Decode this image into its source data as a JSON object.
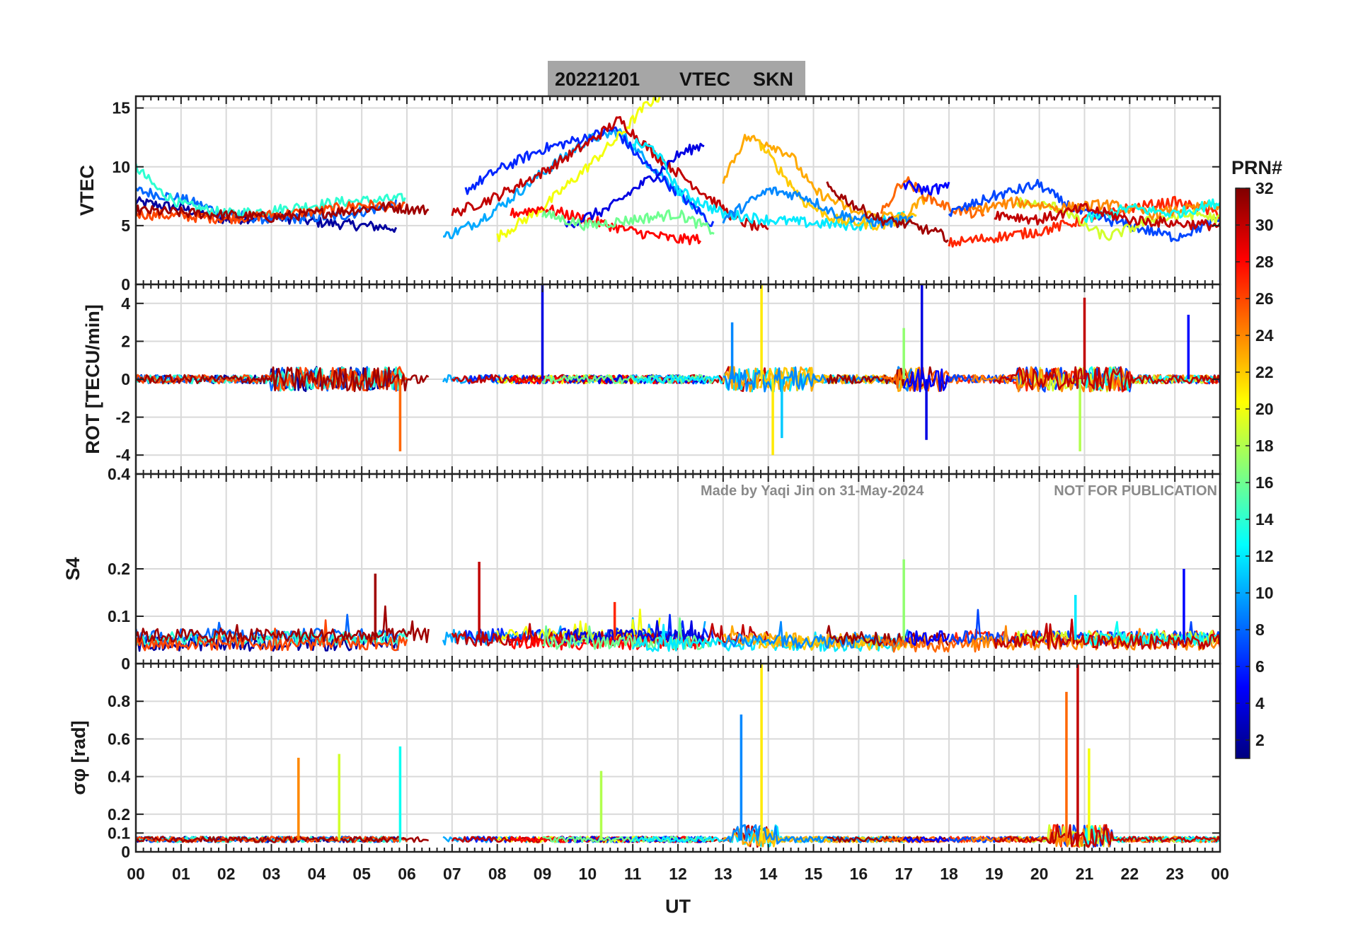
{
  "chart_data": {
    "type": "line",
    "title": {
      "date": "20221201",
      "quantity": "VTEC",
      "station": "SKN"
    },
    "watermark": {
      "made_by": "Made by Yaqi Jin on 31-May-2024",
      "notice": "NOT FOR PUBLICATION"
    },
    "xlabel": "UT",
    "x_tick_labels": [
      "00",
      "01",
      "02",
      "03",
      "04",
      "05",
      "06",
      "07",
      "08",
      "09",
      "10",
      "11",
      "12",
      "13",
      "14",
      "15",
      "16",
      "17",
      "18",
      "19",
      "20",
      "21",
      "22",
      "23",
      "00"
    ],
    "xlim": [
      0,
      24
    ],
    "grid": true,
    "colorbar": {
      "label": "PRN#",
      "range": [
        1,
        32
      ],
      "colormap": "jet",
      "tick_labels": [
        "2",
        "4",
        "6",
        "8",
        "10",
        "12",
        "14",
        "16",
        "18",
        "20",
        "22",
        "24",
        "26",
        "28",
        "30",
        "32"
      ]
    },
    "panels": [
      {
        "id": "vtec",
        "ylabel": "VTEC",
        "ylim": [
          0,
          16
        ],
        "yticks": [
          0,
          5,
          10,
          15
        ],
        "ytick_labels": [
          "0",
          "5",
          "10",
          "15"
        ]
      },
      {
        "id": "rot",
        "ylabel": "ROT [TECU/min]",
        "ylim": [
          -5,
          5
        ],
        "yticks": [
          -4,
          -2,
          0,
          2,
          4
        ],
        "ytick_labels": [
          "-4",
          "-2",
          "0",
          "2",
          "4"
        ]
      },
      {
        "id": "s4",
        "ylabel": "S4",
        "ylim": [
          0,
          0.4
        ],
        "yticks": [
          0,
          0.1,
          0.2,
          0.4
        ],
        "ytick_labels": [
          "0",
          "0.1",
          "0.2",
          "0.4"
        ]
      },
      {
        "id": "sigphi",
        "ylabel": "σφ [rad]",
        "ylim": [
          0,
          1
        ],
        "yticks": [
          0,
          0.1,
          0.2,
          0.4,
          0.6,
          0.8
        ],
        "ytick_labels": [
          "0",
          "0.1",
          "0.2",
          "0.4",
          "0.6",
          "0.8"
        ]
      }
    ],
    "series": [
      {
        "prn": 2,
        "vtec": [
          [
            0.0,
            7.0
          ],
          [
            1.0,
            6.5
          ],
          [
            2.0,
            5.5
          ],
          [
            3.0,
            5.8
          ],
          [
            4.0,
            5.3
          ],
          [
            5.0,
            5.0
          ],
          [
            5.8,
            4.8
          ]
        ]
      },
      {
        "prn": 8,
        "vtec": [
          [
            0.0,
            8.0
          ],
          [
            1.0,
            7.3
          ],
          [
            2.0,
            6.0
          ],
          [
            3.0,
            5.5
          ],
          [
            4.5,
            5.8
          ],
          [
            5.8,
            6.8
          ]
        ]
      },
      {
        "prn": 14,
        "vtec": [
          [
            0.0,
            10.0
          ],
          [
            0.5,
            8.0
          ],
          [
            1.0,
            6.8
          ],
          [
            2.0,
            6.0
          ],
          [
            3.0,
            6.3
          ],
          [
            4.5,
            7.0
          ],
          [
            6.0,
            7.3
          ]
        ]
      },
      {
        "prn": 26,
        "vtec": [
          [
            0.0,
            6.0
          ],
          [
            1.0,
            5.8
          ],
          [
            2.0,
            5.6
          ],
          [
            3.0,
            5.9
          ],
          [
            4.0,
            6.2
          ],
          [
            5.0,
            6.8
          ],
          [
            6.0,
            6.5
          ]
        ]
      },
      {
        "prn": 31,
        "vtec": [
          [
            0.0,
            6.3
          ],
          [
            1.5,
            6.0
          ],
          [
            3.0,
            5.7
          ],
          [
            4.5,
            6.2
          ],
          [
            5.5,
            6.6
          ],
          [
            6.5,
            6.3
          ]
        ]
      },
      {
        "prn": 10,
        "vtec": [
          [
            6.8,
            4.0
          ],
          [
            7.5,
            5.2
          ],
          [
            8.2,
            7.0
          ],
          [
            9.0,
            9.5
          ],
          [
            10.0,
            12.3
          ],
          [
            10.7,
            13.0
          ],
          [
            11.3,
            10.5
          ],
          [
            12.0,
            8.0
          ],
          [
            12.6,
            5.5
          ]
        ]
      },
      {
        "prn": 6,
        "vtec": [
          [
            7.3,
            8.0
          ],
          [
            8.0,
            9.7
          ],
          [
            9.0,
            11.5
          ],
          [
            10.0,
            12.5
          ],
          [
            10.6,
            13.2
          ],
          [
            11.2,
            10.5
          ],
          [
            12.0,
            7.8
          ],
          [
            12.8,
            5.0
          ]
        ]
      },
      {
        "prn": 20,
        "vtec": [
          [
            8.0,
            4.0
          ],
          [
            9.0,
            6.5
          ],
          [
            10.0,
            10.0
          ],
          [
            10.7,
            12.6
          ],
          [
            11.3,
            15.3
          ],
          [
            11.6,
            16.0
          ]
        ]
      },
      {
        "prn": 30,
        "vtec": [
          [
            7.0,
            6.0
          ],
          [
            8.0,
            7.5
          ],
          [
            9.0,
            9.5
          ],
          [
            10.0,
            12.0
          ],
          [
            10.7,
            14.0
          ],
          [
            11.5,
            11.0
          ],
          [
            12.5,
            8.0
          ],
          [
            13.3,
            5.5
          ],
          [
            14.0,
            4.5
          ]
        ]
      },
      {
        "prn": 28,
        "vtec": [
          [
            8.3,
            6.0
          ],
          [
            9.0,
            6.5
          ],
          [
            10.0,
            5.5
          ],
          [
            11.0,
            4.5
          ],
          [
            12.0,
            3.8
          ],
          [
            12.5,
            3.9
          ]
        ]
      },
      {
        "prn": 4,
        "vtec": [
          [
            9.5,
            5.0
          ],
          [
            10.5,
            6.5
          ],
          [
            11.0,
            8.0
          ],
          [
            11.5,
            9.3
          ],
          [
            12.0,
            11.0
          ],
          [
            12.6,
            12.0
          ]
        ]
      },
      {
        "prn": 16,
        "vtec": [
          [
            9.0,
            6.0
          ],
          [
            10.0,
            5.0
          ],
          [
            11.0,
            5.5
          ],
          [
            12.0,
            6.0
          ],
          [
            12.8,
            4.5
          ]
        ]
      },
      {
        "prn": 12,
        "vtec": [
          [
            11.0,
            12.0
          ],
          [
            11.5,
            11.5
          ],
          [
            12.0,
            8.0
          ],
          [
            13.0,
            6.0
          ],
          [
            14.0,
            5.5
          ],
          [
            15.0,
            5.2
          ],
          [
            16.0,
            5.0
          ],
          [
            17.0,
            5.8
          ]
        ]
      },
      {
        "prn": 23,
        "vtec": [
          [
            13.0,
            9.0
          ],
          [
            13.5,
            12.5
          ],
          [
            14.0,
            12.0
          ],
          [
            14.5,
            11.0
          ],
          [
            15.0,
            8.0
          ],
          [
            16.0,
            6.0
          ],
          [
            17.0,
            5.7
          ],
          [
            17.5,
            7.5
          ]
        ]
      },
      {
        "prn": 22,
        "vtec": [
          [
            13.8,
            12.0
          ],
          [
            14.2,
            10.0
          ],
          [
            14.8,
            7.0
          ],
          [
            15.5,
            5.5
          ],
          [
            16.5,
            5.0
          ],
          [
            17.3,
            6.0
          ]
        ]
      },
      {
        "prn": 9,
        "vtec": [
          [
            13.0,
            5.5
          ],
          [
            14.0,
            8.0
          ],
          [
            14.8,
            7.5
          ],
          [
            15.5,
            6.0
          ],
          [
            16.5,
            5.2
          ],
          [
            17.2,
            5.5
          ]
        ]
      },
      {
        "prn": 31,
        "vtec": [
          [
            15.3,
            8.3
          ],
          [
            16.0,
            6.5
          ],
          [
            16.5,
            5.5
          ],
          [
            17.2,
            5.0
          ],
          [
            18.0,
            4.0
          ]
        ]
      },
      {
        "prn": 25,
        "vtec": [
          [
            16.5,
            6.0
          ],
          [
            17.0,
            9.0
          ],
          [
            17.5,
            7.5
          ],
          [
            18.0,
            6.5
          ],
          [
            18.8,
            5.8
          ]
        ]
      },
      {
        "prn": 5,
        "vtec": [
          [
            17.0,
            8.5
          ],
          [
            17.5,
            8.0
          ],
          [
            18.0,
            8.3
          ]
        ]
      },
      {
        "prn": 27,
        "vtec": [
          [
            18.0,
            3.5
          ],
          [
            19.0,
            4.0
          ],
          [
            20.0,
            4.5
          ],
          [
            21.0,
            5.5
          ],
          [
            22.0,
            6.5
          ],
          [
            23.0,
            7.0
          ],
          [
            24.0,
            6.0
          ]
        ]
      },
      {
        "prn": 7,
        "vtec": [
          [
            18.0,
            6.0
          ],
          [
            19.0,
            7.5
          ],
          [
            20.0,
            8.5
          ],
          [
            20.5,
            7.0
          ],
          [
            21.0,
            6.0
          ],
          [
            22.0,
            5.0
          ],
          [
            23.0,
            4.0
          ],
          [
            24.0,
            5.5
          ]
        ]
      },
      {
        "prn": 19,
        "vtec": [
          [
            19.5,
            7.0
          ],
          [
            20.5,
            6.5
          ],
          [
            21.0,
            5.0
          ],
          [
            21.5,
            4.0
          ],
          [
            22.5,
            5.5
          ],
          [
            23.5,
            6.0
          ],
          [
            24.0,
            5.5
          ]
        ]
      },
      {
        "prn": 24,
        "vtec": [
          [
            18.5,
            6.3
          ],
          [
            19.5,
            7.0
          ],
          [
            20.5,
            6.5
          ],
          [
            21.5,
            6.8
          ],
          [
            22.5,
            6.0
          ],
          [
            23.5,
            6.5
          ],
          [
            24.0,
            6.8
          ]
        ]
      },
      {
        "prn": 13,
        "vtec": [
          [
            21.0,
            5.5
          ],
          [
            22.0,
            6.5
          ],
          [
            23.0,
            6.0
          ],
          [
            24.0,
            7.0
          ]
        ]
      },
      {
        "prn": 30,
        "vtec": [
          [
            19.0,
            6.0
          ],
          [
            20.0,
            5.5
          ],
          [
            21.0,
            6.5
          ],
          [
            22.0,
            5.5
          ],
          [
            23.0,
            5.2
          ],
          [
            24.0,
            5.0
          ]
        ]
      }
    ],
    "spikes": {
      "rot": [
        {
          "t": 9.0,
          "v": 5.0,
          "prn": 4
        },
        {
          "t": 17.4,
          "v": 5.0,
          "prn": 4
        },
        {
          "t": 13.85,
          "v": 5.0,
          "prn": 21
        },
        {
          "t": 21.0,
          "v": 4.3,
          "prn": 30
        },
        {
          "t": 14.1,
          "v": -4.0,
          "prn": 21
        },
        {
          "t": 5.85,
          "v": -3.8,
          "prn": 25
        },
        {
          "t": 20.9,
          "v": -3.8,
          "prn": 18
        },
        {
          "t": 17.5,
          "v": -3.2,
          "prn": 4
        },
        {
          "t": 14.3,
          "v": -3.1,
          "prn": 11
        },
        {
          "t": 23.3,
          "v": 3.4,
          "prn": 5
        },
        {
          "t": 13.2,
          "v": 3.0,
          "prn": 9
        },
        {
          "t": 17.0,
          "v": 2.7,
          "prn": 17
        }
      ],
      "s4": [
        {
          "t": 5.3,
          "v": 0.19,
          "prn": 31
        },
        {
          "t": 7.6,
          "v": 0.215,
          "prn": 30
        },
        {
          "t": 17.0,
          "v": 0.22,
          "prn": 17
        },
        {
          "t": 23.2,
          "v": 0.2,
          "prn": 5
        },
        {
          "t": 20.8,
          "v": 0.145,
          "prn": 12
        },
        {
          "t": 10.6,
          "v": 0.13,
          "prn": 27
        }
      ],
      "sigphi": [
        {
          "t": 3.6,
          "v": 0.5,
          "prn": 24
        },
        {
          "t": 4.5,
          "v": 0.52,
          "prn": 19
        },
        {
          "t": 5.85,
          "v": 0.56,
          "prn": 13
        },
        {
          "t": 13.4,
          "v": 0.73,
          "prn": 9
        },
        {
          "t": 13.85,
          "v": 1.0,
          "prn": 21
        },
        {
          "t": 20.85,
          "v": 1.0,
          "prn": 30
        },
        {
          "t": 20.6,
          "v": 0.85,
          "prn": 25
        },
        {
          "t": 21.1,
          "v": 0.55,
          "prn": 20
        },
        {
          "t": 10.3,
          "v": 0.43,
          "prn": 18
        }
      ]
    }
  }
}
